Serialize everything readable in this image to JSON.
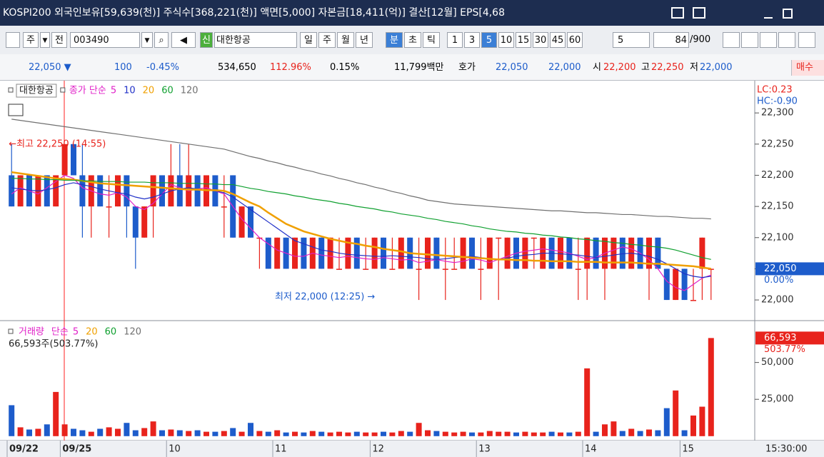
{
  "title_bar": {
    "text": "KOSPI200 외국인보유[59,639(천)] 주식수[368,221(천)] 액면[5,000] 자본금[18,411(억)] 결산[12월] EPS[4,68"
  },
  "toolbar": {
    "code_type": "주",
    "market": "전",
    "code": "003490",
    "badge": "신",
    "name": "대한항공",
    "periods": [
      "일",
      "주",
      "월",
      "년"
    ],
    "units": [
      "분",
      "초",
      "틱"
    ],
    "intervals": [
      1,
      3,
      5,
      10,
      15,
      30,
      45,
      60
    ],
    "interval_input": 5,
    "count": 84,
    "max_count": "/900"
  },
  "quote_bar": {
    "price": "22,050 ▼",
    "change": 100,
    "change_pct": "-0.45%",
    "volume": "534,650",
    "volume_ratio": "112.96%",
    "turnover": "0.15%",
    "amount": "11,799백만",
    "quote_label": "호가",
    "ask": "22,050",
    "bid": "22,000",
    "open_label": "시",
    "open": "22,200",
    "high_label": "고",
    "high": "22,250",
    "low_label": "저",
    "low": "22,000",
    "buy": "매수"
  },
  "chart_data": [
    {
      "type": "candlestick",
      "legend_title": "대한항공",
      "ma_label": "종가 단순",
      "open": [
        22200,
        22150,
        22200,
        22150,
        22200,
        22150,
        22200,
        22250,
        22200,
        22150,
        22200,
        22150,
        22150,
        22200,
        22150,
        22100,
        22150,
        22200,
        22150,
        22200,
        22150,
        22200,
        22150,
        22200,
        22150,
        22200,
        22100,
        22150,
        22100,
        22100,
        22050,
        22100,
        22050,
        22100,
        22050,
        22100,
        22050,
        22050,
        22050,
        22100,
        22050,
        22050,
        22100,
        22050,
        22050,
        22100,
        22050,
        22050,
        22100,
        22050,
        22050,
        22050,
        22100,
        22050,
        22050,
        22100,
        22050,
        22100,
        22050,
        22100,
        22050,
        22100,
        22050,
        22100,
        22050,
        22050,
        22100,
        22050,
        22050,
        22100,
        22050,
        22100,
        22050,
        22100,
        22050,
        22000,
        22050,
        22000,
        22050,
        22050
      ],
      "high": [
        22250,
        22200,
        22200,
        22200,
        22200,
        22200,
        22250,
        22250,
        22250,
        22200,
        22200,
        22200,
        22200,
        22200,
        22150,
        22150,
        22200,
        22200,
        22250,
        22250,
        22250,
        22200,
        22200,
        22200,
        22200,
        22200,
        22150,
        22150,
        22100,
        22100,
        22100,
        22100,
        22100,
        22100,
        22100,
        22100,
        22100,
        22100,
        22100,
        22100,
        22100,
        22100,
        22100,
        22100,
        22100,
        22100,
        22100,
        22100,
        22100,
        22100,
        22100,
        22100,
        22100,
        22100,
        22100,
        22100,
        22100,
        22100,
        22100,
        22100,
        22100,
        22100,
        22100,
        22100,
        22100,
        22100,
        22100,
        22100,
        22100,
        22100,
        22100,
        22100,
        22100,
        22100,
        22050,
        22050,
        22050,
        22050,
        22100,
        22050
      ],
      "low": [
        22150,
        22150,
        22150,
        22150,
        22150,
        22150,
        22200,
        22200,
        22100,
        22100,
        22150,
        22100,
        22150,
        22100,
        22050,
        22100,
        22100,
        22150,
        22150,
        22150,
        22150,
        22150,
        22150,
        22150,
        22100,
        22100,
        22100,
        22100,
        22050,
        22050,
        22050,
        22050,
        22050,
        22050,
        22050,
        22050,
        22050,
        22050,
        22050,
        22050,
        22050,
        22050,
        22050,
        22050,
        22050,
        22050,
        22000,
        22050,
        22050,
        22000,
        22050,
        22050,
        22050,
        22000,
        22050,
        22000,
        22050,
        22050,
        22050,
        22050,
        22050,
        22050,
        22050,
        22050,
        22000,
        22000,
        22050,
        22000,
        22050,
        22050,
        22050,
        22050,
        22000,
        22050,
        22000,
        22000,
        22000,
        22000,
        22000,
        22000
      ],
      "close": [
        22150,
        22200,
        22150,
        22200,
        22150,
        22200,
        22250,
        22200,
        22150,
        22200,
        22150,
        22150,
        22200,
        22150,
        22100,
        22150,
        22200,
        22150,
        22200,
        22150,
        22200,
        22150,
        22200,
        22150,
        22150,
        22100,
        22150,
        22100,
        22100,
        22050,
        22100,
        22050,
        22100,
        22050,
        22100,
        22050,
        22100,
        22050,
        22100,
        22050,
        22050,
        22100,
        22050,
        22050,
        22100,
        22050,
        22050,
        22100,
        22050,
        22050,
        22050,
        22100,
        22050,
        22050,
        22100,
        22100,
        22100,
        22050,
        22100,
        22100,
        22100,
        22050,
        22100,
        22050,
        22050,
        22100,
        22050,
        22100,
        22100,
        22050,
        22100,
        22050,
        22100,
        22050,
        22000,
        22050,
        22000,
        22000,
        22100,
        22050
      ],
      "up_color": "#e8231c",
      "down_color": "#1d5ccb",
      "ma_series": [
        {
          "name": "5",
          "color": "#e020c8",
          "values": [
            22170,
            22180,
            22175,
            22170,
            22180,
            22190,
            22200,
            22195,
            22180,
            22175,
            22170,
            22168,
            22172,
            22165,
            22150,
            22145,
            22155,
            22170,
            22185,
            22180,
            22175,
            22178,
            22180,
            22175,
            22170,
            22150,
            22130,
            22115,
            22100,
            22090,
            22080,
            22075,
            22070,
            22070,
            22075,
            22072,
            22070,
            22068,
            22070,
            22068,
            22066,
            22065,
            22068,
            22066,
            22064,
            22065,
            22060,
            22062,
            22065,
            22062,
            22060,
            22062,
            22066,
            22064,
            22060,
            22065,
            22070,
            22075,
            22078,
            22080,
            22082,
            22080,
            22078,
            22075,
            22070,
            22065,
            22068,
            22075,
            22080,
            22085,
            22082,
            22075,
            22065,
            22050,
            22030,
            22020,
            22015,
            22025,
            22035,
            22040
          ]
        },
        {
          "name": "10",
          "color": "#2030c8",
          "values": [
            22180,
            22178,
            22176,
            22175,
            22177,
            22180,
            22185,
            22188,
            22185,
            22182,
            22178,
            22175,
            22172,
            22170,
            22165,
            22162,
            22165,
            22170,
            22175,
            22178,
            22180,
            22178,
            22176,
            22175,
            22172,
            22165,
            22155,
            22145,
            22135,
            22125,
            22115,
            22105,
            22095,
            22090,
            22085,
            22080,
            22078,
            22075,
            22073,
            22072,
            22071,
            22070,
            22070,
            22071,
            22070,
            22069,
            22068,
            22066,
            22065,
            22066,
            22068,
            22069,
            22070,
            22068,
            22066,
            22065,
            22067,
            22070,
            22072,
            22073,
            22075,
            22075,
            22074,
            22073,
            22072,
            22070,
            22068,
            22070,
            22072,
            22074,
            22075,
            22073,
            22070,
            22065,
            22058,
            22050,
            22042,
            22038,
            22036,
            22038
          ]
        },
        {
          "name": "20",
          "color": "#f0a000",
          "values": [
            22205,
            22203,
            22201,
            22199,
            22197,
            22195,
            22194,
            22193,
            22191,
            22189,
            22187,
            22186,
            22185,
            22184,
            22183,
            22182,
            22181,
            22180,
            22179,
            22178,
            22177,
            22177,
            22176,
            22176,
            22175,
            22170,
            22163,
            22156,
            22150,
            22140,
            22131,
            22122,
            22116,
            22110,
            22106,
            22102,
            22098,
            22095,
            22092,
            22090,
            22087,
            22085,
            22082,
            22080,
            22078,
            22075,
            22074,
            22073,
            22072,
            22071,
            22070,
            22069,
            22068,
            22067,
            22066,
            22065,
            22065,
            22064,
            22064,
            22063,
            22063,
            22062,
            22062,
            22062,
            22061,
            22061,
            22061,
            22060,
            22060,
            22060,
            22060,
            22059,
            22058,
            22058,
            22057,
            22056,
            22055,
            22054,
            22052,
            22050
          ]
        },
        {
          "name": "60",
          "color": "#10a030",
          "values": [
            22195,
            22195,
            22194,
            22194,
            22193,
            22193,
            22192,
            22192,
            22191,
            22191,
            22190,
            22190,
            22190,
            22189,
            22189,
            22189,
            22188,
            22188,
            22188,
            22187,
            22187,
            22187,
            22186,
            22186,
            22185,
            22185,
            22182,
            22179,
            22177,
            22174,
            22172,
            22170,
            22167,
            22165,
            22162,
            22160,
            22158,
            22155,
            22153,
            22150,
            22148,
            22146,
            22143,
            22141,
            22138,
            22136,
            22134,
            22131,
            22129,
            22126,
            22124,
            22122,
            22119,
            22117,
            22114,
            22112,
            22110,
            22109,
            22107,
            22106,
            22104,
            22103,
            22101,
            22100,
            22098,
            22097,
            22095,
            22094,
            22092,
            22091,
            22089,
            22088,
            22086,
            22085,
            22083,
            22080,
            22076,
            22072,
            22068,
            22065
          ]
        },
        {
          "name": "120",
          "color": "#707070",
          "values": [
            22290,
            22288,
            22286,
            22284,
            22282,
            22280,
            22278,
            22276,
            22274,
            22272,
            22270,
            22268,
            22266,
            22264,
            22262,
            22260,
            22258,
            22256,
            22254,
            22252,
            22250,
            22248,
            22246,
            22244,
            22242,
            22238,
            22234,
            22230,
            22227,
            22223,
            22220,
            22216,
            22213,
            22209,
            22206,
            22202,
            22199,
            22195,
            22192,
            22188,
            22185,
            22181,
            22178,
            22174,
            22171,
            22167,
            22164,
            22160,
            22158,
            22156,
            22154,
            22153,
            22152,
            22151,
            22150,
            22149,
            22148,
            22147,
            22146,
            22145,
            22144,
            22143,
            22143,
            22142,
            22141,
            22140,
            22140,
            22139,
            22138,
            22137,
            22137,
            22136,
            22135,
            22134,
            22134,
            22133,
            22132,
            22131,
            22131,
            22130
          ]
        }
      ],
      "ylim": [
        21968,
        22346
      ],
      "yticks": [
        {
          "value": 22000,
          "label": "22,000"
        },
        {
          "value": 22050,
          "label": "22,050"
        },
        {
          "value": 22100,
          "label": "22,100"
        },
        {
          "value": 22150,
          "label": "22,150"
        },
        {
          "value": 22200,
          "label": "22,200"
        },
        {
          "value": 22250,
          "label": "22,250"
        },
        {
          "value": 22300,
          "label": "22,300"
        }
      ],
      "high_annotation": "←최고 22,250 (14:55)",
      "low_annotation": "최저 22,000 (12:25) →",
      "corner_labels": [
        "LC:0.23",
        "HC:-0.90"
      ],
      "last_price_label": "22,050",
      "last_change_label": "0.00%"
    },
    {
      "type": "bar",
      "legend_title": "거래량",
      "ma_label": "단순",
      "ma_legend": [
        {
          "name": "5",
          "color": "#e020c8"
        },
        {
          "name": "20",
          "color": "#f0a000"
        },
        {
          "name": "60",
          "color": "#10a030"
        },
        {
          "name": "120",
          "color": "#707070"
        }
      ],
      "info": "66,593주(503.77%)",
      "categories": [
        "09/22",
        null,
        null,
        null,
        null,
        null,
        "09/25",
        null,
        null,
        null,
        null,
        null,
        null,
        null,
        null,
        null,
        null,
        null,
        "10",
        null,
        null,
        null,
        null,
        null,
        null,
        null,
        null,
        null,
        null,
        null,
        "11",
        null,
        null,
        null,
        null,
        null,
        null,
        null,
        null,
        null,
        null,
        "12",
        null,
        null,
        null,
        null,
        null,
        null,
        null,
        null,
        null,
        null,
        null,
        "13",
        null,
        null,
        null,
        null,
        null,
        null,
        null,
        null,
        null,
        null,
        null,
        "14",
        null,
        null,
        null,
        null,
        null,
        null,
        null,
        null,
        null,
        null,
        "15",
        null,
        null,
        null
      ],
      "values": [
        21000,
        6000,
        4500,
        5000,
        8000,
        30000,
        8000,
        5000,
        4000,
        3000,
        5000,
        6000,
        5000,
        9000,
        4000,
        5500,
        10000,
        4000,
        4500,
        4000,
        3500,
        4000,
        3000,
        3000,
        3500,
        5500,
        3000,
        9000,
        3500,
        3000,
        4000,
        2500,
        3000,
        2500,
        3500,
        3000,
        2500,
        3000,
        2500,
        3000,
        2500,
        2500,
        3000,
        2500,
        3500,
        3000,
        9000,
        4000,
        3500,
        3000,
        2500,
        3000,
        2500,
        2500,
        3500,
        3000,
        3000,
        2500,
        3000,
        2500,
        2500,
        3000,
        2500,
        2500,
        3000,
        46000,
        3000,
        8000,
        10000,
        3500,
        5000,
        3500,
        4500,
        4000,
        19000,
        31000,
        4000,
        14000,
        20000,
        66593
      ],
      "ylim": [
        -3000,
        75500
      ],
      "yticks": [
        {
          "value": 25000,
          "label": "25,000"
        },
        {
          "value": 50000,
          "label": "50,000"
        }
      ],
      "last_volume_label": "66,593",
      "last_ratio_label": "503.77%",
      "time_label": "15:30:00"
    }
  ]
}
